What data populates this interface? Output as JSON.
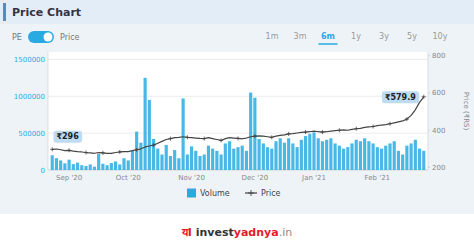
{
  "chart_data": {
    "type": "bar",
    "title": "Price Chart",
    "categories": [
      null,
      null,
      null,
      null,
      "Sep '20",
      null,
      null,
      null,
      null,
      null,
      null,
      null,
      null,
      null,
      null,
      null,
      null,
      null,
      "Oct '20",
      null,
      null,
      null,
      null,
      null,
      null,
      null,
      null,
      null,
      null,
      null,
      null,
      null,
      null,
      "Nov '20",
      null,
      null,
      null,
      null,
      null,
      null,
      null,
      null,
      null,
      null,
      null,
      null,
      null,
      null,
      "Dec '20",
      null,
      null,
      null,
      null,
      null,
      null,
      null,
      null,
      null,
      null,
      null,
      null,
      null,
      "Jan '21",
      null,
      null,
      null,
      null,
      null,
      null,
      null,
      null,
      null,
      null,
      null,
      null,
      null,
      null,
      "Feb '21",
      null,
      null,
      null,
      null,
      null,
      null,
      null,
      null,
      null,
      null,
      null
    ],
    "series": [
      {
        "name": "Volume",
        "type": "bar",
        "color": "#29abe2",
        "values": [
          200000,
          160000,
          130000,
          90000,
          140000,
          80000,
          100000,
          65000,
          55000,
          75000,
          45000,
          220000,
          85000,
          65000,
          95000,
          115000,
          75000,
          160000,
          130000,
          260000,
          520000,
          370000,
          1250000,
          950000,
          420000,
          290000,
          210000,
          340000,
          190000,
          270000,
          160000,
          970000,
          210000,
          320000,
          260000,
          190000,
          210000,
          330000,
          290000,
          260000,
          210000,
          360000,
          390000,
          290000,
          310000,
          330000,
          260000,
          1050000,
          980000,
          420000,
          360000,
          310000,
          290000,
          390000,
          430000,
          370000,
          430000,
          360000,
          310000,
          410000,
          460000,
          490000,
          510000,
          430000,
          390000,
          410000,
          430000,
          360000,
          330000,
          290000,
          310000,
          360000,
          410000,
          390000,
          430000,
          390000,
          360000,
          310000,
          290000,
          330000,
          360000,
          390000,
          260000,
          210000,
          330000,
          360000,
          410000,
          290000,
          260000
        ]
      },
      {
        "name": "Price",
        "type": "line",
        "color": "#444444",
        "marker": "plus",
        "axis": "y2",
        "values": [
          296,
          298,
          294,
          289,
          291,
          287,
          284,
          282,
          279,
          277,
          275,
          279,
          277,
          275,
          274,
          279,
          282,
          284,
          284,
          289,
          294,
          299,
          309,
          314,
          319,
          329,
          339,
          349,
          354,
          359,
          361,
          364,
          361,
          359,
          357,
          355,
          354,
          359,
          354,
          349,
          344,
          354,
          359,
          357,
          355,
          353,
          357,
          364,
          367,
          369,
          367,
          364,
          361,
          367,
          371,
          374,
          379,
          381,
          384,
          387,
          389,
          391,
          394,
          391,
          389,
          391,
          394,
          397,
          399,
          401,
          399,
          404,
          407,
          409,
          414,
          417,
          419,
          424,
          427,
          429,
          434,
          439,
          444,
          449,
          459,
          479,
          509,
          549,
          579
        ]
      }
    ],
    "ylim": [
      0,
      1600000
    ],
    "yticks": [
      0,
      500000,
      1000000,
      1500000
    ],
    "y2lim": [
      185,
      820
    ],
    "y2ticks": [
      200,
      400,
      600,
      800
    ],
    "y2label": "Price (₹RS)",
    "annotations": [
      "₹296",
      "₹579.9"
    ],
    "grid": true,
    "legend": "bottom"
  },
  "page": {
    "toggle_labels": [
      "PE",
      "Price"
    ],
    "periods": [
      "1m",
      "3m",
      "6m",
      "1y",
      "3y",
      "5y",
      "10y"
    ],
    "active_period": "6m",
    "footer": [
      {
        "text": "यI ",
        "color": "#e8192c"
      },
      {
        "text": "invest",
        "color": "#333333"
      },
      {
        "text": "yadnya",
        "color": "#e8192c"
      },
      {
        "text": ".in",
        "color": "#888888"
      }
    ]
  }
}
